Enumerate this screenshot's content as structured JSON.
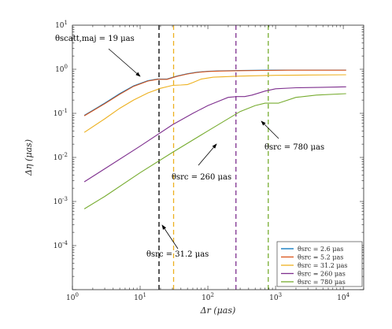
{
  "chart_data": {
    "type": "line",
    "xlabel": "Δr (μas)",
    "ylabel": "Δη (μas)",
    "xscale": "log",
    "yscale": "log",
    "xlim": [
      1,
      20000
    ],
    "ylim": [
      1e-05,
      10
    ],
    "x_tick_labels": [
      "10^0",
      "10^1",
      "10^2",
      "10^3",
      "10^4"
    ],
    "y_tick_labels": [
      "10^-4",
      "10^-3",
      "10^-2",
      "10^-1",
      "10^0",
      "10^1"
    ],
    "grid": false,
    "legend_position": "bottom-right",
    "series": [
      {
        "name": "θsrc = 2.6 μas",
        "color": "#0072BD",
        "x": [
          1.5,
          3,
          5,
          8,
          13,
          18,
          25,
          35,
          50,
          70,
          100,
          150,
          300,
          700,
          1500,
          4000,
          11000
        ],
        "y": [
          0.09,
          0.17,
          0.28,
          0.42,
          0.55,
          0.6,
          0.6,
          0.7,
          0.79,
          0.86,
          0.9,
          0.92,
          0.94,
          0.95,
          0.96,
          0.96,
          0.96
        ]
      },
      {
        "name": "θsrc = 5.2 μas",
        "color": "#D95319",
        "x": [
          1.5,
          3,
          5,
          8,
          13,
          18,
          25,
          35,
          50,
          70,
          100,
          150,
          300,
          700,
          1500,
          4000,
          11000
        ],
        "y": [
          0.088,
          0.165,
          0.27,
          0.41,
          0.54,
          0.59,
          0.59,
          0.69,
          0.78,
          0.85,
          0.89,
          0.91,
          0.93,
          0.94,
          0.95,
          0.95,
          0.95
        ]
      },
      {
        "name": "θsrc = 31.2 μas",
        "color": "#EDB120",
        "x": [
          1.5,
          3,
          5,
          8,
          13,
          20,
          30,
          40,
          50,
          60,
          80,
          120,
          300,
          1000,
          3000,
          11000
        ],
        "y": [
          0.037,
          0.075,
          0.13,
          0.2,
          0.29,
          0.37,
          0.43,
          0.44,
          0.45,
          0.5,
          0.6,
          0.66,
          0.7,
          0.73,
          0.74,
          0.75
        ]
      },
      {
        "name": "θsrc = 260 μas",
        "color": "#7E2F8E",
        "x": [
          1.5,
          3,
          10,
          30,
          60,
          100,
          200,
          270,
          350,
          450,
          700,
          1000,
          2000,
          5000,
          11000
        ],
        "y": [
          0.0028,
          0.0055,
          0.018,
          0.055,
          0.1,
          0.15,
          0.23,
          0.24,
          0.24,
          0.26,
          0.32,
          0.36,
          0.38,
          0.39,
          0.4
        ]
      },
      {
        "name": "θsrc = 780 μas",
        "color": "#77AC30",
        "x": [
          1.5,
          3,
          10,
          30,
          100,
          300,
          500,
          700,
          900,
          1100,
          2000,
          4000,
          11000
        ],
        "y": [
          0.00068,
          0.0013,
          0.0045,
          0.013,
          0.04,
          0.11,
          0.15,
          0.17,
          0.17,
          0.17,
          0.23,
          0.26,
          0.28
        ]
      }
    ],
    "vlines": [
      {
        "x": 19,
        "color": "#000000"
      },
      {
        "x": 31.2,
        "color": "#EDB120"
      },
      {
        "x": 260,
        "color": "#7E2F8E"
      },
      {
        "x": 780,
        "color": "#77AC30"
      }
    ],
    "annotations": [
      {
        "text": "θscatt,maj = 19 μas",
        "target": [
          19,
          0.6
        ]
      },
      {
        "text": "θsrc = 260 μas",
        "target": [
          260,
          0.05
        ]
      },
      {
        "text": "θsrc = 780 μas",
        "target": [
          780,
          0.15
        ]
      },
      {
        "text": "θsrc = 31.2 μas",
        "target": [
          31.2,
          0.0008
        ]
      }
    ]
  }
}
